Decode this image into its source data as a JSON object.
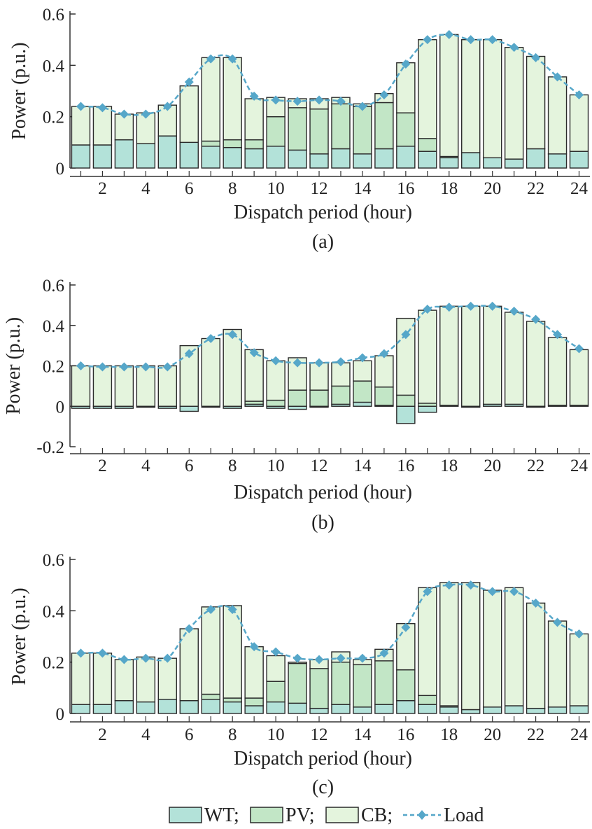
{
  "colors": {
    "wt": "#b3e2d9",
    "pv": "#c2e6c6",
    "cb": "#e4f4dd",
    "load": "#56a7c9",
    "bar_edge": "#2a2a2a",
    "axis": "#333333"
  },
  "legend": {
    "wt": "WT;",
    "pv": "PV;",
    "cb": "CB;",
    "load": "Load"
  },
  "chart_data": [
    {
      "type": "bar",
      "caption": "(a)",
      "xlabel": "Dispatch period (hour)",
      "ylabel": "Power (p.u.)",
      "ylim": [
        0,
        0.6
      ],
      "yticks": [
        "0",
        "0.2",
        "0.4",
        "0.6"
      ],
      "xticks": [
        "2",
        "4",
        "6",
        "8",
        "10",
        "12",
        "14",
        "16",
        "18",
        "20",
        "22",
        "24"
      ],
      "categories": [
        1,
        2,
        3,
        4,
        5,
        6,
        7,
        8,
        9,
        10,
        11,
        12,
        13,
        14,
        15,
        16,
        17,
        18,
        19,
        20,
        21,
        22,
        23,
        24
      ],
      "series": [
        {
          "name": "WT",
          "values": [
            0.09,
            0.09,
            0.11,
            0.095,
            0.125,
            0.1,
            0.085,
            0.08,
            0.075,
            0.085,
            0.07,
            0.055,
            0.075,
            0.055,
            0.075,
            0.085,
            0.065,
            0.04,
            0.06,
            0.04,
            0.035,
            0.075,
            0.055,
            0.065
          ]
        },
        {
          "name": "PV",
          "values": [
            0,
            0,
            0,
            0,
            0,
            0,
            0.02,
            0.03,
            0.035,
            0.115,
            0.165,
            0.175,
            0.175,
            0.185,
            0.18,
            0.13,
            0.05,
            0.005,
            0,
            0,
            0,
            0,
            0,
            0
          ]
        },
        {
          "name": "CB",
          "values": [
            0.15,
            0.15,
            0.1,
            0.12,
            0.12,
            0.22,
            0.325,
            0.32,
            0.16,
            0.075,
            0.035,
            0.04,
            0.025,
            0.01,
            0.035,
            0.195,
            0.385,
            0.475,
            0.44,
            0.46,
            0.435,
            0.36,
            0.3,
            0.22
          ]
        },
        {
          "name": "Load",
          "values": [
            0.24,
            0.235,
            0.21,
            0.21,
            0.24,
            0.335,
            0.425,
            0.425,
            0.28,
            0.265,
            0.26,
            0.265,
            0.26,
            0.24,
            0.285,
            0.405,
            0.5,
            0.52,
            0.5,
            0.5,
            0.47,
            0.43,
            0.355,
            0.285
          ]
        }
      ]
    },
    {
      "type": "bar",
      "caption": "(b)",
      "xlabel": "Dispatch period (hour)",
      "ylabel": "Power (p.u.)",
      "ylim": [
        -0.2,
        0.6
      ],
      "yticks": [
        "-0.2",
        "0",
        "0.2",
        "0.4",
        "0.6"
      ],
      "xticks": [
        "2",
        "4",
        "6",
        "8",
        "10",
        "12",
        "14",
        "16",
        "18",
        "20",
        "22",
        "24"
      ],
      "categories": [
        1,
        2,
        3,
        4,
        5,
        6,
        7,
        8,
        9,
        10,
        11,
        12,
        13,
        14,
        15,
        16,
        17,
        18,
        19,
        20,
        21,
        22,
        23,
        24
      ],
      "series": [
        {
          "name": "WT",
          "values": [
            -0.01,
            -0.01,
            -0.01,
            -0.005,
            -0.01,
            -0.025,
            -0.005,
            -0.01,
            0.01,
            -0.01,
            -0.015,
            -0.005,
            0.01,
            0.02,
            0.005,
            -0.085,
            -0.03,
            0.005,
            -0.005,
            0.01,
            0.01,
            -0.005,
            0.005,
            0.005
          ]
        },
        {
          "name": "PV",
          "values": [
            0,
            0,
            0,
            0,
            0,
            0,
            0,
            0,
            0.015,
            0.03,
            0.08,
            0.08,
            0.09,
            0.105,
            0.09,
            0.055,
            0.015,
            0,
            0,
            0,
            0,
            0,
            0,
            0
          ]
        },
        {
          "name": "CB",
          "values": [
            0.2,
            0.2,
            0.2,
            0.2,
            0.2,
            0.3,
            0.335,
            0.38,
            0.255,
            0.195,
            0.16,
            0.135,
            0.115,
            0.1,
            0.155,
            0.38,
            0.46,
            0.49,
            0.495,
            0.485,
            0.455,
            0.42,
            0.335,
            0.275
          ]
        },
        {
          "name": "Load",
          "values": [
            0.2,
            0.195,
            0.195,
            0.195,
            0.195,
            0.26,
            0.335,
            0.355,
            0.265,
            0.225,
            0.215,
            0.215,
            0.22,
            0.24,
            0.26,
            0.355,
            0.48,
            0.49,
            0.495,
            0.495,
            0.47,
            0.43,
            0.355,
            0.285
          ]
        }
      ]
    },
    {
      "type": "bar",
      "caption": "(c)",
      "xlabel": "Dispatch period (hour)",
      "ylabel": "Power (p.u.)",
      "ylim": [
        0,
        0.6
      ],
      "yticks": [
        "0",
        "0.2",
        "0.4",
        "0.6"
      ],
      "xticks": [
        "2",
        "4",
        "6",
        "8",
        "10",
        "12",
        "14",
        "16",
        "18",
        "20",
        "22",
        "24"
      ],
      "categories": [
        1,
        2,
        3,
        4,
        5,
        6,
        7,
        8,
        9,
        10,
        11,
        12,
        13,
        14,
        15,
        16,
        17,
        18,
        19,
        20,
        21,
        22,
        23,
        24
      ],
      "series": [
        {
          "name": "WT",
          "values": [
            0.035,
            0.035,
            0.05,
            0.045,
            0.055,
            0.05,
            0.055,
            0.045,
            0.03,
            0.045,
            0.04,
            0.02,
            0.035,
            0.025,
            0.035,
            0.05,
            0.035,
            0.025,
            0.015,
            0.025,
            0.03,
            0.02,
            0.025,
            0.03
          ]
        },
        {
          "name": "PV",
          "values": [
            0,
            0,
            0,
            0,
            0,
            0,
            0.02,
            0.015,
            0.03,
            0.08,
            0.155,
            0.155,
            0.165,
            0.165,
            0.17,
            0.12,
            0.035,
            0.005,
            0,
            0,
            0,
            0,
            0,
            0
          ]
        },
        {
          "name": "CB",
          "values": [
            0.2,
            0.2,
            0.16,
            0.175,
            0.16,
            0.28,
            0.34,
            0.36,
            0.2,
            0.1,
            0.005,
            0.035,
            0.04,
            0.02,
            0.045,
            0.18,
            0.42,
            0.48,
            0.495,
            0.455,
            0.46,
            0.41,
            0.335,
            0.28
          ]
        },
        {
          "name": "Load",
          "values": [
            0.235,
            0.235,
            0.21,
            0.215,
            0.215,
            0.33,
            0.405,
            0.405,
            0.26,
            0.24,
            0.215,
            0.21,
            0.215,
            0.215,
            0.235,
            0.335,
            0.475,
            0.5,
            0.5,
            0.475,
            0.475,
            0.43,
            0.355,
            0.31
          ]
        }
      ]
    }
  ]
}
